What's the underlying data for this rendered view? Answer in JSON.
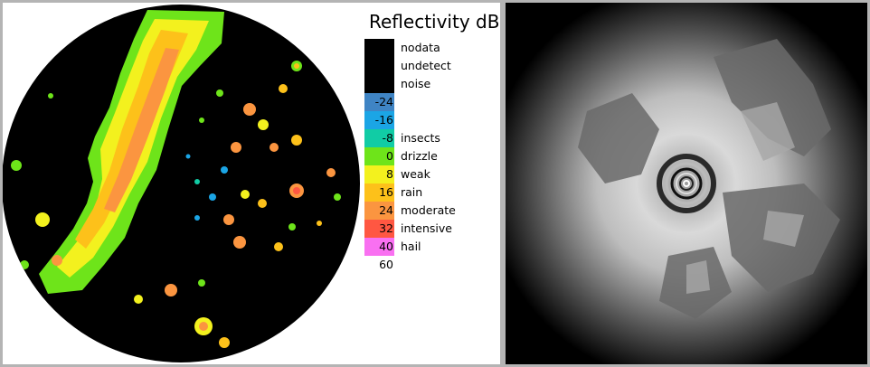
{
  "legend": {
    "title": "Reflectivity dB",
    "rows": [
      {
        "color": "#000000",
        "value": "",
        "label": "nodata"
      },
      {
        "color": "#000000",
        "value": "",
        "label": "undetect"
      },
      {
        "color": "#000000",
        "value": "",
        "label": "noise"
      },
      {
        "color": "#3f84c4",
        "value": "-24",
        "label": ""
      },
      {
        "color": "#1ba5e5",
        "value": "-16",
        "label": ""
      },
      {
        "color": "#11cca5",
        "value": "-8",
        "label": "insects"
      },
      {
        "color": "#6ee41a",
        "value": "0",
        "label": "drizzle"
      },
      {
        "color": "#f3f11e",
        "value": "8",
        "label": "weak"
      },
      {
        "color": "#fdc11a",
        "value": "16",
        "label": "rain"
      },
      {
        "color": "#fb9540",
        "value": "24",
        "label": "moderate"
      },
      {
        "color": "#ff5742",
        "value": "32",
        "label": "intensive"
      },
      {
        "color": "#f970f1",
        "value": "40",
        "label": "hail"
      },
      {
        "color": "#ffffff",
        "value": "60",
        "label": ""
      }
    ]
  },
  "colors": {
    "scope_background": "#000000",
    "drizzle": "#6ee41a",
    "weak": "#f3f11e",
    "rain": "#fdc11a",
    "moderate": "#fb9540",
    "intensive": "#ff5742",
    "light_blue": "#1ba5e5",
    "teal": "#11cca5"
  }
}
